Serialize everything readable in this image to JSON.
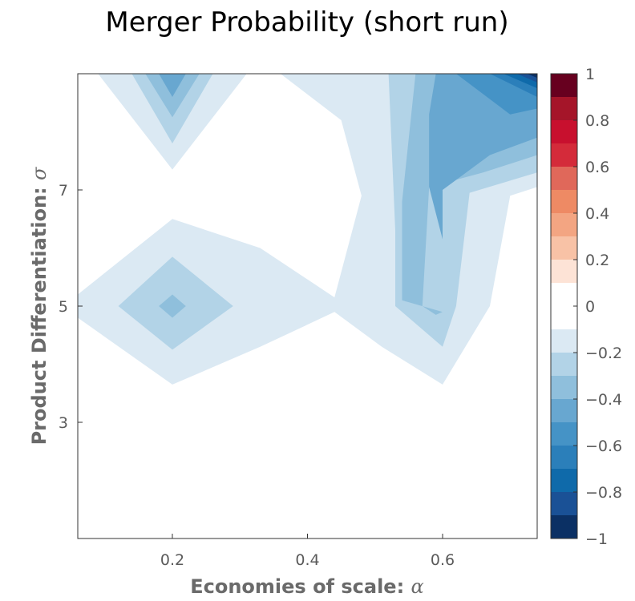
{
  "chart_data": {
    "type": "contour",
    "title": "Merger Probability (short run)",
    "xlabel": {
      "text": "Economies of scale: ",
      "symbol": "α"
    },
    "ylabel": {
      "text": "Product Differentiation: ",
      "symbol": "σ"
    },
    "xlim": [
      0.06,
      0.74
    ],
    "ylim": [
      1.0,
      9.0
    ],
    "x_ticks": [
      {
        "value": 0.2,
        "label": "0.2"
      },
      {
        "value": 0.4,
        "label": "0.4"
      },
      {
        "value": 0.6,
        "label": "0.6"
      }
    ],
    "y_ticks": [
      {
        "value": 3,
        "label": "3"
      },
      {
        "value": 5,
        "label": "5"
      },
      {
        "value": 7,
        "label": "7"
      }
    ],
    "colorbar": {
      "range": [
        -1,
        1
      ],
      "labels": [
        {
          "value": 1,
          "text": "1"
        },
        {
          "value": 0.8,
          "text": "0.8"
        },
        {
          "value": 0.6,
          "text": "0.6"
        },
        {
          "value": 0.4,
          "text": "0.4"
        },
        {
          "value": 0.2,
          "text": "0.2"
        },
        {
          "value": 0,
          "text": "0"
        },
        {
          "value": -0.2,
          "text": "−0.2"
        },
        {
          "value": -0.4,
          "text": "−0.4"
        },
        {
          "value": -0.6,
          "text": "−0.6"
        },
        {
          "value": -0.8,
          "text": "−0.8"
        },
        {
          "value": -1,
          "text": "−1"
        }
      ],
      "bands": [
        {
          "from": 0.9,
          "to": 1.0,
          "color": "#67001f"
        },
        {
          "from": 0.8,
          "to": 0.9,
          "color": "#a51529"
        },
        {
          "from": 0.7,
          "to": 0.8,
          "color": "#c8102e"
        },
        {
          "from": 0.6,
          "to": 0.7,
          "color": "#d42b3a"
        },
        {
          "from": 0.5,
          "to": 0.6,
          "color": "#e0685a"
        },
        {
          "from": 0.4,
          "to": 0.5,
          "color": "#ee8a64"
        },
        {
          "from": 0.3,
          "to": 0.4,
          "color": "#f3a582"
        },
        {
          "from": 0.2,
          "to": 0.3,
          "color": "#f8c2a6"
        },
        {
          "from": 0.1,
          "to": 0.2,
          "color": "#fde3d6"
        },
        {
          "from": -0.1,
          "to": 0.1,
          "color": "#ffffff"
        },
        {
          "from": -0.2,
          "to": -0.1,
          "color": "#dbe9f3"
        },
        {
          "from": -0.3,
          "to": -0.2,
          "color": "#b2d3e7"
        },
        {
          "from": -0.4,
          "to": -0.3,
          "color": "#8fbfdc"
        },
        {
          "from": -0.5,
          "to": -0.4,
          "color": "#68a7d0"
        },
        {
          "from": -0.6,
          "to": -0.5,
          "color": "#4593c6"
        },
        {
          "from": -0.7,
          "to": -0.6,
          "color": "#2b7fba"
        },
        {
          "from": -0.8,
          "to": -0.7,
          "color": "#0f6aaa"
        },
        {
          "from": -0.9,
          "to": -0.8,
          "color": "#1a5196"
        },
        {
          "from": -1.0,
          "to": -0.9,
          "color": "#0b3064"
        }
      ]
    },
    "contour_regions": [
      {
        "level": -0.15,
        "polygon": [
          [
            0.06,
            5.2
          ],
          [
            0.2,
            6.5
          ],
          [
            0.33,
            6.0
          ],
          [
            0.44,
            5.15
          ],
          [
            0.48,
            6.9
          ],
          [
            0.45,
            8.2
          ],
          [
            0.36,
            9.0
          ],
          [
            0.74,
            9.0
          ],
          [
            0.74,
            7.05
          ],
          [
            0.7,
            6.9
          ],
          [
            0.67,
            5.0
          ],
          [
            0.6,
            3.65
          ],
          [
            0.51,
            4.3
          ],
          [
            0.44,
            4.9
          ],
          [
            0.33,
            4.3
          ],
          [
            0.2,
            3.65
          ],
          [
            0.06,
            4.8
          ]
        ]
      },
      {
        "level": -0.15,
        "polygon": [
          [
            0.09,
            9.0
          ],
          [
            0.2,
            7.35
          ],
          [
            0.31,
            9.0
          ]
        ]
      },
      {
        "level": -0.25,
        "polygon": [
          [
            0.52,
            9.0
          ],
          [
            0.74,
            9.0
          ],
          [
            0.74,
            7.3
          ],
          [
            0.64,
            6.95
          ],
          [
            0.62,
            5.0
          ],
          [
            0.6,
            4.3
          ],
          [
            0.53,
            5.0
          ],
          [
            0.53,
            6.3
          ]
        ]
      },
      {
        "level": -0.25,
        "polygon": [
          [
            0.12,
            5.0
          ],
          [
            0.2,
            5.85
          ],
          [
            0.29,
            5.0
          ],
          [
            0.2,
            4.25
          ]
        ]
      },
      {
        "level": -0.25,
        "polygon": [
          [
            0.14,
            9.0
          ],
          [
            0.2,
            7.8
          ],
          [
            0.26,
            9.0
          ]
        ]
      },
      {
        "level": -0.35,
        "polygon": [
          [
            0.56,
            9.0
          ],
          [
            0.74,
            9.0
          ],
          [
            0.74,
            7.6
          ],
          [
            0.66,
            7.3
          ],
          [
            0.58,
            7.05
          ],
          [
            0.57,
            5.0
          ],
          [
            0.59,
            4.85
          ],
          [
            0.6,
            4.9
          ],
          [
            0.54,
            5.1
          ],
          [
            0.54,
            6.8
          ]
        ]
      },
      {
        "level": -0.35,
        "polygon": [
          [
            0.18,
            5.0
          ],
          [
            0.2,
            5.2
          ],
          [
            0.22,
            5.0
          ],
          [
            0.2,
            4.8
          ]
        ]
      },
      {
        "level": -0.35,
        "polygon": [
          [
            0.16,
            9.0
          ],
          [
            0.2,
            8.25
          ],
          [
            0.24,
            9.0
          ]
        ]
      },
      {
        "level": -0.45,
        "polygon": [
          [
            0.59,
            9.0
          ],
          [
            0.74,
            9.0
          ],
          [
            0.74,
            7.9
          ],
          [
            0.67,
            7.6
          ],
          [
            0.6,
            7.0
          ],
          [
            0.6,
            6.15
          ],
          [
            0.58,
            7.05
          ],
          [
            0.58,
            8.3
          ]
        ]
      },
      {
        "level": -0.45,
        "polygon": [
          [
            0.18,
            9.0
          ],
          [
            0.2,
            8.6
          ],
          [
            0.22,
            9.0
          ]
        ]
      },
      {
        "level": -0.55,
        "polygon": [
          [
            0.62,
            9.0
          ],
          [
            0.74,
            9.0
          ],
          [
            0.74,
            8.4
          ],
          [
            0.7,
            8.3
          ]
        ]
      },
      {
        "level": -0.65,
        "polygon": [
          [
            0.67,
            9.0
          ],
          [
            0.74,
            9.0
          ],
          [
            0.74,
            8.6
          ]
        ]
      },
      {
        "level": -0.75,
        "polygon": [
          [
            0.69,
            9.0
          ],
          [
            0.74,
            9.0
          ],
          [
            0.74,
            8.75
          ]
        ]
      },
      {
        "level": -0.85,
        "polygon": [
          [
            0.71,
            9.0
          ],
          [
            0.74,
            9.0
          ],
          [
            0.74,
            8.85
          ]
        ]
      },
      {
        "level": -0.95,
        "polygon": [
          [
            0.725,
            9.0
          ],
          [
            0.74,
            9.0
          ],
          [
            0.74,
            8.93
          ]
        ]
      }
    ]
  }
}
